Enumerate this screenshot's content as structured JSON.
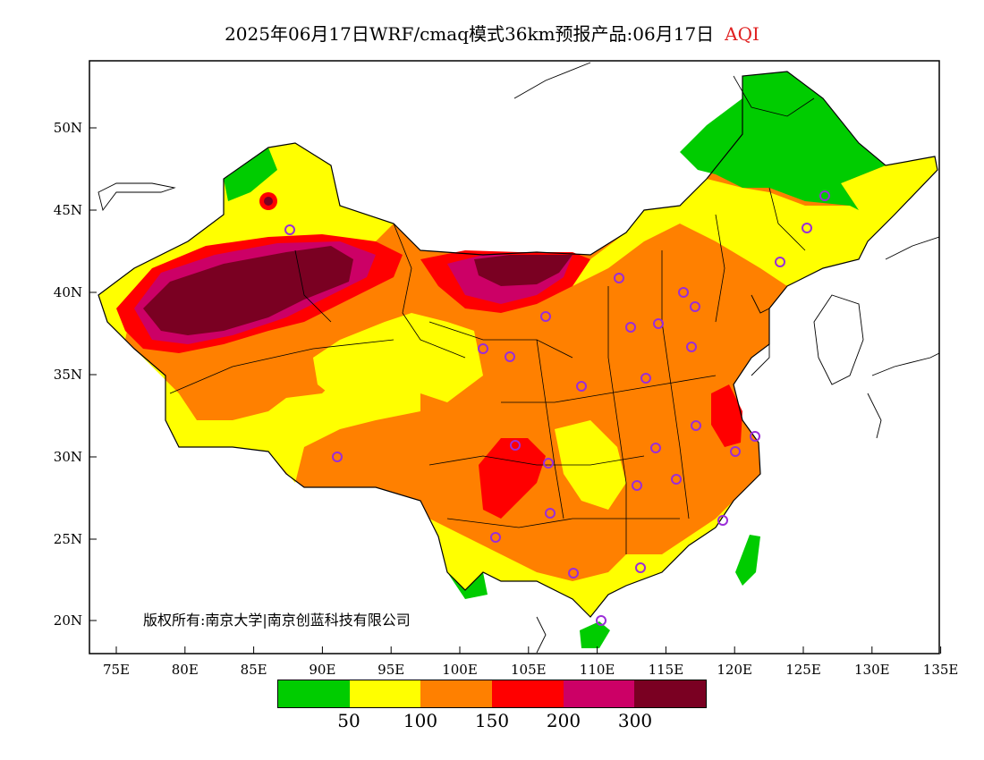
{
  "title": {
    "text": "2025年06月17日WRF/cmaq模式36km预报产品:06月17日",
    "variable": "AQI",
    "variable_color": "#e02020"
  },
  "axes": {
    "lat_labels": [
      "50N",
      "45N",
      "40N",
      "35N",
      "30N",
      "25N",
      "20N"
    ],
    "lon_labels": [
      "75E",
      "80E",
      "85E",
      "90E",
      "95E",
      "100E",
      "105E",
      "110E",
      "115E",
      "120E",
      "125E",
      "130E",
      "135E"
    ]
  },
  "copyright": "版权所有:南京大学|南京创蓝科技有限公司",
  "colorbar": {
    "colors": [
      "#00cc00",
      "#ffff00",
      "#ff8000",
      "#ff0000",
      "#cc0066",
      "#7a0022"
    ],
    "labels": [
      "50",
      "100",
      "150",
      "200",
      "300"
    ]
  },
  "palette": {
    "good": "#00cc00",
    "moderate": "#ffff00",
    "sensitive": "#ff8000",
    "unhealthy": "#ff0000",
    "very_unhealthy": "#cc0066",
    "hazardous": "#7a0022",
    "station_marker": "#9a2dd8"
  }
}
